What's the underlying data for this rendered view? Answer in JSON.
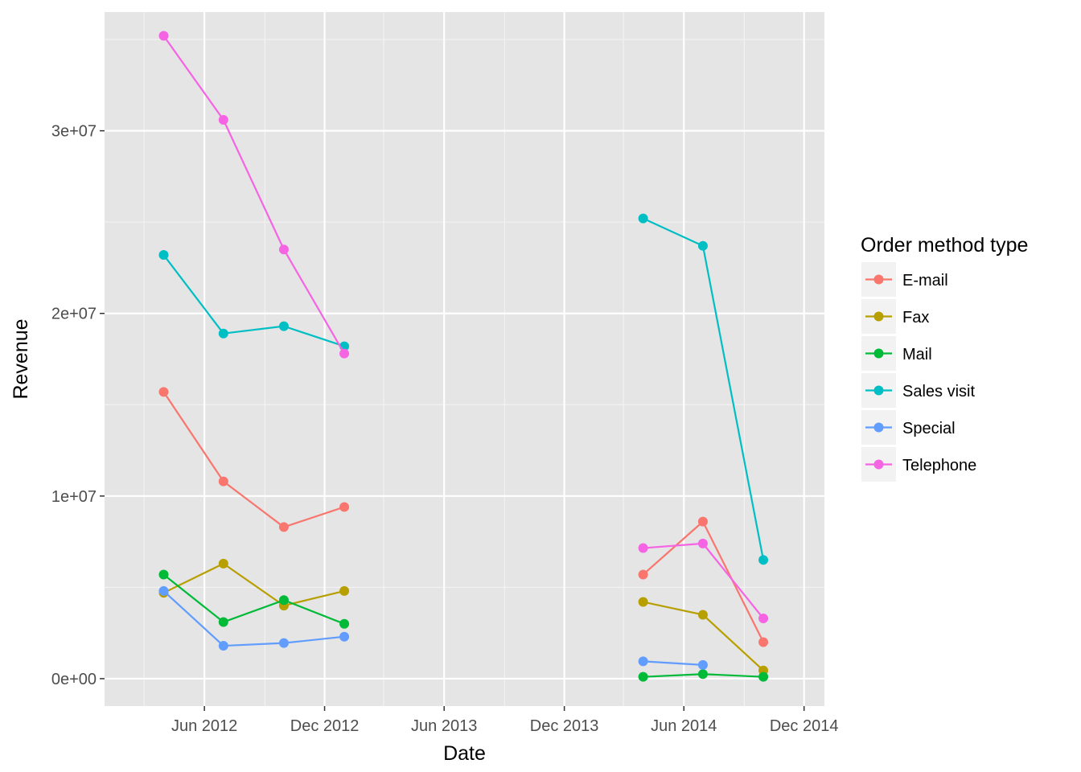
{
  "chart_data": {
    "type": "line",
    "title": "",
    "xlabel": "Date",
    "ylabel": "Revenue",
    "x_type": "date",
    "xlim": [
      "2012-01-01",
      "2015-01-01"
    ],
    "ylim": [
      -1500000,
      36500000
    ],
    "x_ticks": [
      {
        "date": "2012-06-01",
        "label": "Jun 2012"
      },
      {
        "date": "2012-12-01",
        "label": "Dec 2012"
      },
      {
        "date": "2013-06-01",
        "label": "Jun 2013"
      },
      {
        "date": "2013-12-01",
        "label": "Dec 2013"
      },
      {
        "date": "2014-06-01",
        "label": "Jun 2014"
      },
      {
        "date": "2014-12-01",
        "label": "Dec 2014"
      }
    ],
    "x_minor_ticks": [
      "2012-03-01",
      "2012-09-01",
      "2013-03-01",
      "2013-09-01",
      "2014-03-01",
      "2014-09-01"
    ],
    "y_ticks": [
      {
        "value": 0,
        "label": "0e+00"
      },
      {
        "value": 10000000,
        "label": "1e+07"
      },
      {
        "value": 20000000,
        "label": "2e+07"
      },
      {
        "value": 30000000,
        "label": "3e+07"
      }
    ],
    "y_minor_ticks": [
      5000000,
      15000000,
      25000000,
      35000000
    ],
    "grid": true,
    "panel_background": "#e5e5e5",
    "legend": {
      "title": "Order method type",
      "position": "right"
    },
    "series_segments": [
      [
        "2012-03-31",
        "2012-06-30",
        "2012-09-30",
        "2012-12-31"
      ],
      [
        "2014-03-31",
        "2014-06-30",
        "2014-09-30"
      ]
    ],
    "series": [
      {
        "name": "E-mail",
        "color": "#F8766D",
        "points": [
          {
            "x": "2012-03-31",
            "y": 15700000
          },
          {
            "x": "2012-06-30",
            "y": 10800000
          },
          {
            "x": "2012-09-30",
            "y": 8300000
          },
          {
            "x": "2012-12-31",
            "y": 9400000
          },
          {
            "x": "2014-03-31",
            "y": 5700000
          },
          {
            "x": "2014-06-30",
            "y": 8600000
          },
          {
            "x": "2014-09-30",
            "y": 2000000
          }
        ]
      },
      {
        "name": "Fax",
        "color": "#B79F00",
        "points": [
          {
            "x": "2012-03-31",
            "y": 4700000
          },
          {
            "x": "2012-06-30",
            "y": 6300000
          },
          {
            "x": "2012-09-30",
            "y": 4000000
          },
          {
            "x": "2012-12-31",
            "y": 4800000
          },
          {
            "x": "2014-03-31",
            "y": 4200000
          },
          {
            "x": "2014-06-30",
            "y": 3500000
          },
          {
            "x": "2014-09-30",
            "y": 450000
          }
        ]
      },
      {
        "name": "Mail",
        "color": "#00BA38",
        "points": [
          {
            "x": "2012-03-31",
            "y": 5700000
          },
          {
            "x": "2012-06-30",
            "y": 3100000
          },
          {
            "x": "2012-09-30",
            "y": 4300000
          },
          {
            "x": "2012-12-31",
            "y": 3000000
          },
          {
            "x": "2014-03-31",
            "y": 100000
          },
          {
            "x": "2014-06-30",
            "y": 250000
          },
          {
            "x": "2014-09-30",
            "y": 100000
          }
        ]
      },
      {
        "name": "Sales visit",
        "color": "#00BFC4",
        "points": [
          {
            "x": "2012-03-31",
            "y": 23200000
          },
          {
            "x": "2012-06-30",
            "y": 18900000
          },
          {
            "x": "2012-09-30",
            "y": 19300000
          },
          {
            "x": "2012-12-31",
            "y": 18200000
          },
          {
            "x": "2014-03-31",
            "y": 25200000
          },
          {
            "x": "2014-06-30",
            "y": 23700000
          },
          {
            "x": "2014-09-30",
            "y": 6500000
          }
        ]
      },
      {
        "name": "Special",
        "color": "#619CFF",
        "points": [
          {
            "x": "2012-03-31",
            "y": 4800000
          },
          {
            "x": "2012-06-30",
            "y": 1800000
          },
          {
            "x": "2012-09-30",
            "y": 1950000
          },
          {
            "x": "2012-12-31",
            "y": 2300000
          },
          {
            "x": "2014-03-31",
            "y": 950000
          },
          {
            "x": "2014-06-30",
            "y": 750000
          }
        ]
      },
      {
        "name": "Telephone",
        "color": "#F564E3",
        "points": [
          {
            "x": "2012-03-31",
            "y": 35200000
          },
          {
            "x": "2012-06-30",
            "y": 30600000
          },
          {
            "x": "2012-09-30",
            "y": 23500000
          },
          {
            "x": "2012-12-31",
            "y": 17800000
          },
          {
            "x": "2014-03-31",
            "y": 7150000
          },
          {
            "x": "2014-06-30",
            "y": 7400000
          },
          {
            "x": "2014-09-30",
            "y": 3300000
          }
        ]
      }
    ]
  }
}
